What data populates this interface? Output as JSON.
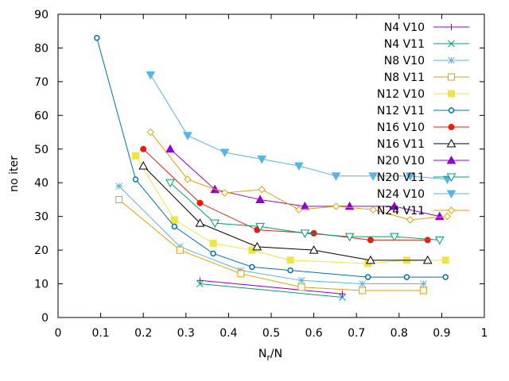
{
  "chart_data": {
    "type": "line",
    "title": "",
    "xlabel_main": "N",
    "xlabel_sub": "r",
    "xlabel_tail": "/N",
    "ylabel": "no iter",
    "xlim": [
      0,
      1
    ],
    "ylim": [
      0,
      90
    ],
    "xticks": [
      0,
      0.1,
      0.2,
      0.3,
      0.4,
      0.5,
      0.6,
      0.7,
      0.8,
      0.9,
      1
    ],
    "xtick_labels": [
      "0",
      "0.1",
      "0.2",
      "0.3",
      "0.4",
      "0.5",
      "0.6",
      "0.7",
      "0.8",
      "0.9",
      "1"
    ],
    "yticks": [
      0,
      10,
      20,
      30,
      40,
      50,
      60,
      70,
      80,
      90
    ],
    "ytick_labels": [
      "0",
      "10",
      "20",
      "30",
      "40",
      "50",
      "60",
      "70",
      "80",
      "90"
    ],
    "grid": false,
    "legend_position": "top-right",
    "series": [
      {
        "name": "N4 V10",
        "color": "#9400d3",
        "marker": "plus",
        "x": [
          0.333,
          0.667
        ],
        "y": [
          11,
          7
        ]
      },
      {
        "name": "N4 V11",
        "color": "#009e73",
        "marker": "x",
        "x": [
          0.333,
          0.667
        ],
        "y": [
          10,
          6
        ]
      },
      {
        "name": "N8 V10",
        "color": "#56b4e9",
        "marker": "star",
        "x": [
          0.143,
          0.286,
          0.429,
          0.571,
          0.714,
          0.857
        ],
        "y": [
          39,
          21,
          14,
          11,
          10,
          10
        ]
      },
      {
        "name": "N8 V11",
        "color": "#e69f00",
        "marker": "square",
        "x": [
          0.143,
          0.286,
          0.429,
          0.571,
          0.714,
          0.857
        ],
        "y": [
          35,
          20,
          13,
          9,
          8,
          8
        ]
      },
      {
        "name": "N12 V10",
        "color": "#f0e442",
        "marker": "square-filled",
        "x": [
          0.182,
          0.273,
          0.364,
          0.455,
          0.545,
          0.727,
          0.818,
          0.909
        ],
        "y": [
          48,
          29,
          22,
          20,
          17,
          16,
          17,
          17
        ]
      },
      {
        "name": "N12 V11",
        "color": "#0072b2",
        "marker": "circle-dot",
        "x": [
          0.091,
          0.182,
          0.273,
          0.364,
          0.455,
          0.545,
          0.727,
          0.818,
          0.909
        ],
        "y": [
          83,
          41,
          27,
          19,
          15,
          14,
          12,
          12,
          12
        ]
      },
      {
        "name": "N16 V10",
        "color": "#e51e10",
        "marker": "circle-filled",
        "x": [
          0.2,
          0.333,
          0.467,
          0.6,
          0.733,
          0.867
        ],
        "y": [
          50,
          34,
          26,
          25,
          23,
          23
        ]
      },
      {
        "name": "N16 V11",
        "color": "#000000",
        "marker": "triangle",
        "x": [
          0.2,
          0.333,
          0.467,
          0.6,
          0.733,
          0.867
        ],
        "y": [
          45,
          28,
          21,
          20,
          17,
          17
        ]
      },
      {
        "name": "N20 V10",
        "color": "#9400d3",
        "marker": "triangle-filled",
        "x": [
          0.263,
          0.368,
          0.474,
          0.579,
          0.684,
          0.789,
          0.895
        ],
        "y": [
          50,
          38,
          35,
          33,
          33,
          33,
          30
        ]
      },
      {
        "name": "N20 V11",
        "color": "#009e73",
        "marker": "triangle-down",
        "x": [
          0.263,
          0.368,
          0.474,
          0.579,
          0.684,
          0.789,
          0.895
        ],
        "y": [
          40,
          28,
          27,
          25,
          24,
          24,
          23
        ]
      },
      {
        "name": "N24 V10",
        "color": "#56b4e9",
        "marker": "triangle-down-filled",
        "x": [
          0.217,
          0.304,
          0.391,
          0.478,
          0.565,
          0.652,
          0.739,
          0.826,
          0.913
        ],
        "y": [
          72,
          54,
          49,
          47,
          45,
          42,
          42,
          42,
          41
        ]
      },
      {
        "name": "N24 V11",
        "color": "#e69f00",
        "marker": "diamond",
        "x": [
          0.217,
          0.304,
          0.391,
          0.478,
          0.565,
          0.652,
          0.739,
          0.826,
          0.913
        ],
        "y": [
          55,
          41,
          37,
          38,
          32,
          33,
          32,
          29,
          30
        ]
      }
    ]
  }
}
